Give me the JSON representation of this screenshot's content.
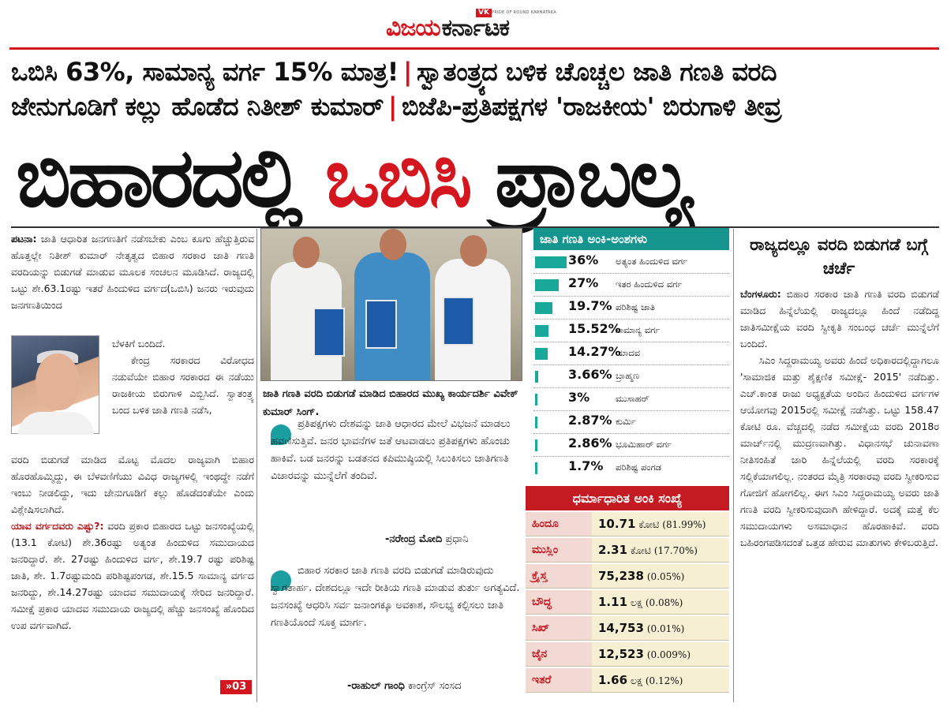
{
  "masthead": {
    "badge": "VK",
    "brand_red": "ವಿಜಯ",
    "brand_black": "ಕರ್ನಾಟಕ",
    "tagline": "PRIDE OF ROUND KARNATAKA"
  },
  "headlines": {
    "line1_a": "ಒಬಿಸಿ 63%, ಸಾಮಾನ್ಯ ವರ್ಗ 15% ಮಾತ್ರ!",
    "line1_b": "ಸ್ವಾತಂತ್ರ್ಯದ ಬಳಿಕ ಚೊಚ್ಚಲ ಜಾತಿ ಗಣತಿ ವರದಿ",
    "line2_a": "ಜೇನುಗೂಡಿಗೆ ಕಲ್ಲು ಹೊಡೆದ ನಿತೀಶ್ ಕುಮಾರ್",
    "line2_b": "ಬಿಜೆಪಿ-ಪ್ರತಿಪಕ್ಷಗಳ 'ರಾಜಕೀಯ' ಬಿರುಗಾಳಿ ತೀವ್ರ",
    "separator": "|",
    "main_a": "ಬಿಹಾರದಲ್ಲಿ",
    "main_b": "ಒಬಿಸಿ",
    "main_c": "ಪ್ರಾಬಲ್ಯ"
  },
  "left_story": {
    "dateline": "ಪಟನಾ:",
    "para1": "ಜಾತಿ ಆಧಾರಿತ ಜನಗಣತಿಗೆ ನಡೆಸಬೇಕು ಎಂಬ ಕೂಗು ಹೆಚ್ಚುತ್ತಿರುವ ಹೊತ್ತಲ್ಲೇ ನಿತೀಶ್ ಕುಮಾರ್ ನೇತೃತ್ವದ ಬಿಹಾರ ಸರಕಾರ ಜಾತಿ ಗಣತಿ ವರದಿಯನ್ನು ಬಿಡುಗಡೆ ಮಾಡುವ ಮೂಲಕ ಸಂಚಲನ ಮೂಡಿಸಿದೆ. ರಾಜ್ಯದಲ್ಲಿ ಒಟ್ಟು ಶೇ.63.1ರಷ್ಟು ಇತರೆ ಹಿಂದುಳಿದ ವರ್ಗದ(ಒಬಿಸಿ) ಜನರು ಇರುವುದು ಜನಗಣತಿಯಿಂದ",
    "para1_end": "ಬೆಳಕಿಗೆ ಬಂದಿದೆ.",
    "para2": "ಕೇಂದ್ರ ಸರಕಾರದ ವಿರೋಧದ ನಡುವೆಯೇ ಬಿಹಾರ ಸರಕಾರದ ಈ ನಡೆಯು ರಾಜಕೀಯ ಬಿರುಗಾಳಿ ಎಬ್ಬಿಸಿದೆ. ಸ್ವಾತಂತ್ರ್ಯ ಬಂದ ಬಳಿಕ ಜಾತಿ ಗಣತಿ ನಡೆಸಿ,",
    "para3": "ವರದಿ ಬಿಡುಗಡೆ ಮಾಡಿದ ಮೊಟ್ಟ ಮೊದಲ ರಾಜ್ಯವಾಗಿ ಬಿಹಾರ ಹೊರಹೊಮ್ಮಿದ್ದು, ಈ ಬೆಳವಣಿಗೆಯು ವಿವಿಧ ರಾಜ್ಯಗಳಲ್ಲಿ ಇಂಥದ್ದೇ ನಡೆಗೆ ಇಂಬು ನೀಡಲಿದ್ದು, ಇದು ಜೇನುಗೂಡಿಗೆ ಕಲ್ಲು ಹೊಡೆದಂತೆಯೇ ಎಂದು ವಿಶ್ಲೇಷಿಸಲಾಗಿದೆ.",
    "subhead": "ಯಾವ ವರ್ಗದವರು ಎಷ್ಟು?:",
    "para4": "ವರದಿ ಪ್ರಕಾರ ಬಿಹಾರದ ಒಟ್ಟು ಜನಸಂಖ್ಯೆಯಲ್ಲಿ (13.1 ಕೋಟಿ) ಶೇ.36ರಷ್ಟು ಅತ್ಯಂತ ಹಿಂದುಳಿದ ಸಮುದಾಯದ ಜನರಿದ್ದಾರೆ. ಶೇ. 27ರಷ್ಟು ಹಿಂದುಳಿದ ವರ್ಗ, ಶೇ.19.7 ರಷ್ಟು ಪರಿಶಿಷ್ಟ ಜಾತಿ, ಶೇ. 1.7ರಷ್ಟುಮಂದಿ ಪರಿಶಿಷ್ಟಪಂಗಡ, ಶೇ.15.5 ಸಾಮಾನ್ಯ ವರ್ಗದ ಜನರಿದ್ದು, ಶೇ.14.27ರಷ್ಟು ಯಾದವ ಸಮುದಾಯಕ್ಕೆ ಸೇರಿದ ಜನರಿದ್ದಾರೆ. ಸಮೀಕ್ಷೆ ಪ್ರಕಾರ ಯಾದವ ಸಮುದಾಯ ರಾಜ್ಯದಲ್ಲಿ ಹೆಚ್ಚು ಜನಸಂಖ್ಯೆ ಹೊಂದಿದ ಉಪ ವರ್ಗವಾಗಿದೆ.",
    "continue": "»03"
  },
  "photo": {
    "caption": "ಜಾತಿ ಗಣತಿ ವರದಿ ಬಿಡುಗಡೆ ಮಾಡಿದ ಬಿಹಾರದ ಮುಖ್ಯ ಕಾರ್ಯದರ್ಶಿ ವಿವೇಕ್ ಕುಮಾರ್ ಸಿಂಗ್."
  },
  "quotes": [
    {
      "text": "ಪ್ರತಿಪಕ್ಷಗಳು ದೇಶವನ್ನು ಜಾತಿ ಆಧಾರದ ಮೇಲೆ ವಿಭಜನೆ ಮಾಡಲು ಹವಣಿಸುತ್ತಿವೆ. ಜನರ ಭಾವನೆಗಳ ಜತೆ ಆಟವಾಡಲು ಪ್ರತಿಪಕ್ಷಗಳು ಹೊಂಚು ಹಾಕಿವೆ. ಬಡ ಜನರನ್ನು ಬಡತನದ ಕಪಿಮುಷ್ಠಿಯಲ್ಲಿ ಸಿಲುಕಿಸಲು ಜಾತಿಗಣತಿ ವಿಚಾರವನ್ನು ಮುನ್ನೆಲೆಗೆ ತಂದಿವೆ.",
      "name": "-ನರೇಂದ್ರ ಮೋದಿ",
      "role": "ಪ್ರಧಾನಿ"
    },
    {
      "text": "ಬಿಹಾರ ಸರಕಾರ ಜಾತಿ ಗಣತಿ ವರದಿ ಬಿಡುಗಡೆ ಮಾಡಿರುವುದು ಸ್ವಾಗತಾರ್ಹ. ದೇಶದಲ್ಲೂ ಇದೇ ರೀತಿಯ ಗಣತಿ ಮಾಡುವ ತುರ್ತು ಅಗತ್ಯವಿದೆ. ಜನಸಂಖ್ಯೆ ಆಧರಿಸಿ ಸರ್ವ ಜನಾಂಗಕ್ಕೂ ಅವಕಾಶ, ಸೌಲಭ್ಯ ಕಲ್ಪಿಸಲು ಜಾತಿ ಗಣತಿಯೊಂದೆ ಸೂಕ್ತ ಮಾರ್ಗ.",
      "name": "-ರಾಹುಲ್ ಗಾಂಧಿ",
      "role": "ಕಾಂಗ್ರೆಸ್ ಸಂಸದ"
    }
  ],
  "caste_table": {
    "title": "ಜಾತಿ ಗಣತಿ ಅಂಕಿ-ಅಂಶಗಳು",
    "rows": [
      {
        "pct": "36%",
        "label": "ಅತ್ಯಂತ ಹಿಂದುಳಿದ ವರ್ಗ",
        "value": 36
      },
      {
        "pct": "27%",
        "label": "ಇತರ ಹಿಂದುಳಿದ ವರ್ಗ",
        "value": 27
      },
      {
        "pct": "19.7%",
        "label": "ಪರಿಶಿಷ್ಟ ಜಾತಿ",
        "value": 19.7
      },
      {
        "pct": "15.52%",
        "label": "ಸಾಮಾನ್ಯ ವರ್ಗ",
        "value": 15.52
      },
      {
        "pct": "14.27%",
        "label": "ಯಾದವ",
        "value": 14.27
      },
      {
        "pct": "3.66%",
        "label": "ಬ್ರಾಹ್ಮಣ",
        "value": 3.66
      },
      {
        "pct": "3%",
        "label": "ಮುಸಾಹರ್",
        "value": 3
      },
      {
        "pct": "2.87%",
        "label": "ಕುರ್ಮಿ",
        "value": 2.87
      },
      {
        "pct": "2.86%",
        "label": "ಭೂಮಿಹಾರ್ ವರ್ಗ",
        "value": 2.86
      },
      {
        "pct": "1.7%",
        "label": "ಪರಿಶಿಷ್ಟ ಪಂಗಡ",
        "value": 1.7
      }
    ]
  },
  "religion_table": {
    "title": "ಧರ್ಮಾಧಾರಿತ ಅಂಕಿ ಸಂಖ್ಯೆ",
    "rows": [
      {
        "name": "ಹಿಂದೂ",
        "num": "10.71",
        "unit": "ಕೋಟಿ",
        "pc": "(81.99%)"
      },
      {
        "name": "ಮುಸ್ಲಿಂ",
        "num": "2.31",
        "unit": "ಕೋಟಿ",
        "pc": "(17.70%)"
      },
      {
        "name": "ಕ್ರೈಸ್ತ",
        "num": "75,238",
        "unit": "",
        "pc": "(0.05%)"
      },
      {
        "name": "ಬೌದ್ಧ",
        "num": "1.11",
        "unit": "ಲಕ್ಷ",
        "pc": "(0.08%)"
      },
      {
        "name": "ಸಿಖ್",
        "num": "14,753",
        "unit": "",
        "pc": "(0.01%)"
      },
      {
        "name": "ಜೈನ",
        "num": "12,523",
        "unit": "",
        "pc": "(0.009%)"
      },
      {
        "name": "ಇತರೆ",
        "num": "1.66",
        "unit": "ಲಕ್ಷ",
        "pc": "(0.12%)"
      }
    ]
  },
  "right_story": {
    "heading": "ರಾಜ್ಯದಲ್ಲೂ ವರದಿ ಬಿಡುಗಡೆ ಬಗ್ಗೆ ಚರ್ಚೆ",
    "dateline": "ಬೆಂಗಳೂರು:",
    "para1": "ಬಿಹಾರ ಸರಕಾರ ಜಾತಿ ಗಣತಿ ವರದಿ ಬಿಡುಗಡೆ ಮಾಡಿದ ಹಿನ್ನೆಲೆಯಲ್ಲಿ ರಾಜ್ಯದಲ್ಲೂ ಹಿಂದೆ ನಡೆದಿದ್ದ ಜಾತಿಸಮೀಕ್ಷೆಯ ವರದಿ ಸ್ವೀಕೃತಿ ಸಂಬಂಧ ಚರ್ಚೆ ಮುನ್ನೆಲೆಗೆ ಬಂದಿದೆ.",
    "para2": "ಸಿಎಂ ಸಿದ್ದರಾಮಯ್ಯ ಅವರು ಹಿಂದೆ ಅಧಿಕಾರದಲ್ಲಿದ್ದಾಗಲೂ 'ಸಾಮಾಜಿಕ ಮತ್ತು ಶೈಕ್ಷಣಿಕ ಸಮೀಕ್ಷೆ- 2015' ನಡೆದಿತ್ತು. ಎಚ್.ಕಾಂತ ರಾಜು ಅಧ್ಯಕ್ಷತೆಯ ಅಂದಿನ ಹಿಂದುಳಿದ ವರ್ಗಗಳ ಆಯೋಗವು 2015ರಲ್ಲಿ ಸಮೀಕ್ಷೆ ನಡೆಸಿತ್ತು. ಒಟ್ಟು 158.47 ಕೋಟಿ ರೂ. ವೆಚ್ಚದಲ್ಲಿ ನಡೆದ ಸಮೀಕ್ಷೆಯ ವರದಿ 2018ರ ಮಾರ್ಚ್‌ನಲ್ಲಿ ಮುದ್ರಣವಾಗಿತ್ತು. ವಿಧಾನಸಭೆ ಚುನಾವಣಾ ನೀತಿಸಂಹಿತೆ ಜಾರಿ ಹಿನ್ನೆಲೆಯಲ್ಲಿ ವರದಿ ಸರಕಾರಕ್ಕೆ ಸಲ್ಲಿಕೆಯಾಗಲಿಲ್ಲ. ನಂತರದ ಮೈತ್ರಿ ಸರಕಾರವು ವರದಿ ಸ್ವೀಕರಿಸುವ ಗೋಜಿಗೆ ಹೋಗಲಿಲ್ಲ. ಈಗ ಸಿಎಂ ಸಿದ್ದರಾಮಯ್ಯ ಅವರು ಜಾತಿ ಗಣತಿ ವರದಿ ಸ್ವೀಕರಿಸುವುದಾಗಿ ಹೇಳಿದ್ದಾರೆ. ಅದಕ್ಕೆ ಮತ್ತೆ ಕೆಲ ಸಮುದಾಯಗಳು ಅಸಮಾಧಾನ ಹೊರಹಾಕಿವೆ. ವರದಿ ಬಹಿರಂಗಪಡಿಸದಂತೆ ಒತ್ತಡ ಹೇರುವ ಮಾತುಗಳು ಕೇಳಿಬರುತ್ತಿದೆ."
  },
  "colors": {
    "brand_red": "#d4171e",
    "teal": "#16958f",
    "religion_red": "#c41a22"
  }
}
